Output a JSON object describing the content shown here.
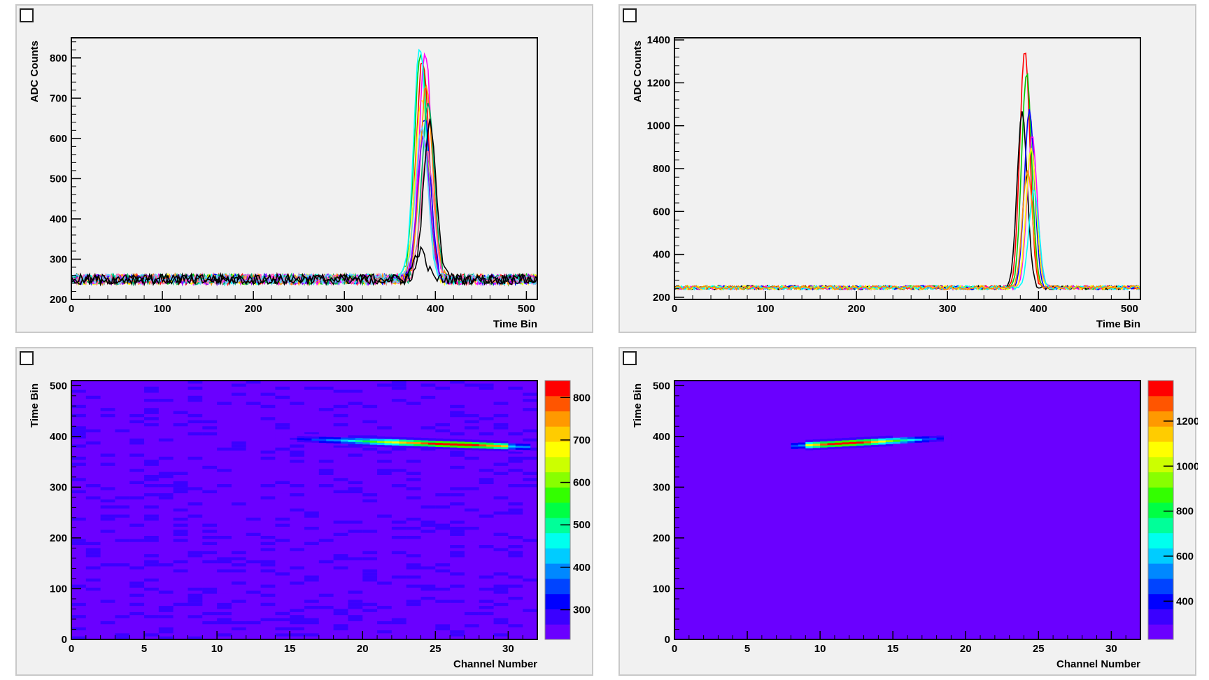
{
  "pads": [
    {
      "id": "pad1"
    },
    {
      "id": "pad2"
    },
    {
      "id": "pad3"
    },
    {
      "id": "pad4"
    }
  ],
  "chart_data": [
    {
      "type": "line",
      "title": "",
      "xlabel": "Time Bin",
      "ylabel": "ADC Counts",
      "xlim": [
        0,
        512
      ],
      "ylim": [
        200,
        850
      ],
      "xticks": [
        0,
        100,
        200,
        300,
        400,
        500
      ],
      "yticks": [
        200,
        300,
        400,
        500,
        600,
        700,
        800
      ],
      "baseline": 250,
      "series": [
        {
          "color": "#ff0000",
          "peak_x": 386,
          "peak_y": 800
        },
        {
          "color": "#00cc00",
          "peak_x": 384,
          "peak_y": 820
        },
        {
          "color": "#0000ff",
          "peak_x": 388,
          "peak_y": 650
        },
        {
          "color": "#ffff00",
          "peak_x": 385,
          "peak_y": 700
        },
        {
          "color": "#ff00ff",
          "peak_x": 389,
          "peak_y": 810
        },
        {
          "color": "#00ffff",
          "peak_x": 383,
          "peak_y": 830
        },
        {
          "color": "#ff8800",
          "peak_x": 390,
          "peak_y": 730
        },
        {
          "color": "#8800ff",
          "peak_x": 387,
          "peak_y": 600
        },
        {
          "color": "#00aa66",
          "peak_x": 392,
          "peak_y": 680
        },
        {
          "color": "#ff66aa",
          "peak_x": 391,
          "peak_y": 560
        },
        {
          "color": "#66ccff",
          "peak_x": 385,
          "peak_y": 620
        },
        {
          "color": "#000000",
          "peak_x": 383,
          "peak_y": 320
        },
        {
          "color": "#000000",
          "peak_x": 394,
          "peak_y": 640
        }
      ]
    },
    {
      "type": "line",
      "title": "",
      "xlabel": "Time Bin",
      "ylabel": "ADC Counts",
      "xlim": [
        0,
        512
      ],
      "ylim": [
        190,
        1410
      ],
      "xticks": [
        0,
        100,
        200,
        300,
        400,
        500
      ],
      "yticks": [
        200,
        400,
        600,
        800,
        1000,
        1200,
        1400
      ],
      "baseline": 245,
      "series": [
        {
          "color": "#ff0000",
          "peak_x": 385,
          "peak_y": 1360
        },
        {
          "color": "#00cc00",
          "peak_x": 387,
          "peak_y": 1250
        },
        {
          "color": "#000000",
          "peak_x": 382,
          "peak_y": 1060
        },
        {
          "color": "#0000ff",
          "peak_x": 390,
          "peak_y": 1080
        },
        {
          "color": "#ff00ff",
          "peak_x": 393,
          "peak_y": 950
        },
        {
          "color": "#ffff00",
          "peak_x": 392,
          "peak_y": 900
        },
        {
          "color": "#00ffff",
          "peak_x": 395,
          "peak_y": 700
        },
        {
          "color": "#ff8800",
          "peak_x": 388,
          "peak_y": 800
        }
      ]
    },
    {
      "type": "heatmap",
      "title": "",
      "xlabel": "Channel Number",
      "ylabel": "Time Bin",
      "xlim": [
        0,
        32
      ],
      "ylim": [
        0,
        510
      ],
      "xticks": [
        0,
        5,
        10,
        15,
        20,
        25,
        30
      ],
      "yticks": [
        0,
        100,
        200,
        300,
        400,
        500
      ],
      "zlim": [
        230,
        840
      ],
      "zticks": [
        300,
        400,
        500,
        600,
        700,
        800
      ],
      "background_value": 250,
      "track": {
        "x_start": 14,
        "x_end": 31,
        "y_start": 395,
        "y_end": 378,
        "peak_channel": 26,
        "peak_value": 840
      }
    },
    {
      "type": "heatmap",
      "title": "",
      "xlabel": "Channel Number",
      "ylabel": "Time Bin",
      "xlim": [
        0,
        32
      ],
      "ylim": [
        0,
        510
      ],
      "xticks": [
        0,
        5,
        10,
        15,
        20,
        25,
        30
      ],
      "yticks": [
        0,
        100,
        200,
        300,
        400,
        500
      ],
      "zlim": [
        230,
        1380
      ],
      "zticks": [
        400,
        600,
        800,
        1000,
        1200
      ],
      "background_value": 245,
      "track": {
        "x_start": 8,
        "x_end": 19,
        "y_start": 380,
        "y_end": 396,
        "peak_channel": 11.5,
        "peak_value": 1370
      }
    }
  ]
}
